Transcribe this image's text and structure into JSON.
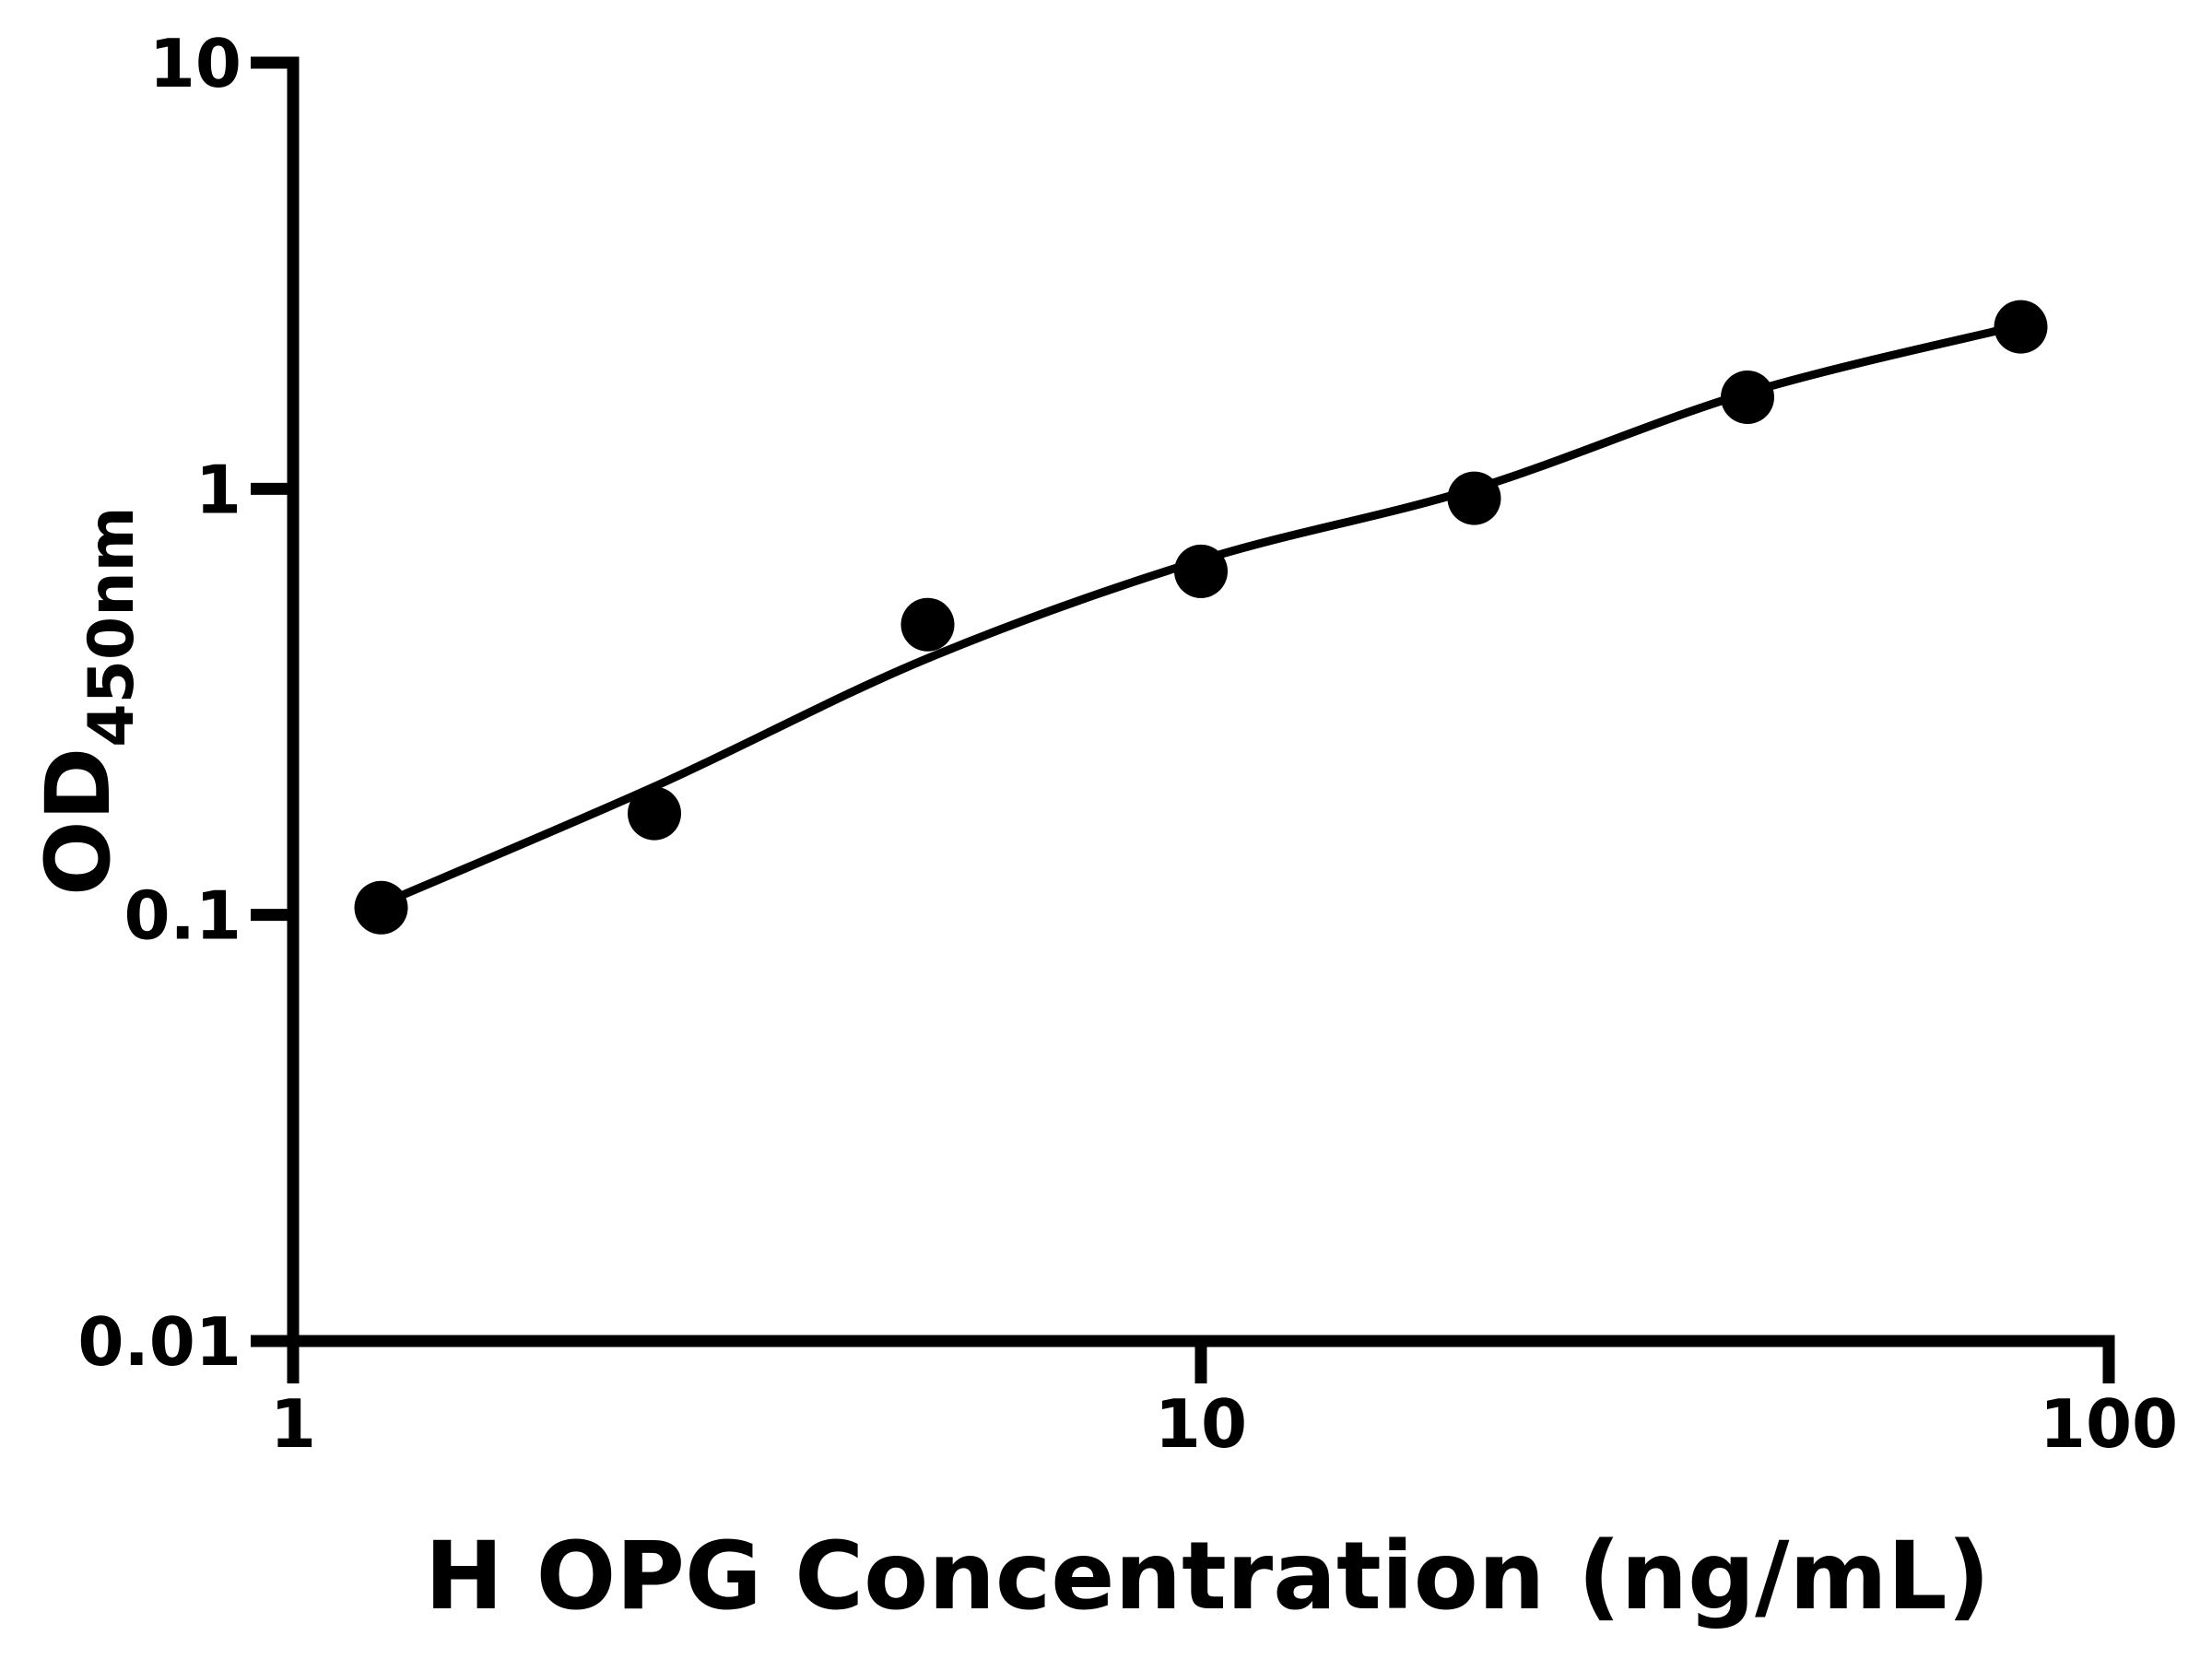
{
  "figure": {
    "background_color": "#ffffff",
    "ink_color": "#000000"
  },
  "chart_data": {
    "type": "scatter",
    "title": "",
    "xlabel": "H OPG Concentration (ng/mL)",
    "ylabel_main": "OD",
    "ylabel_subscript": "450nm",
    "x_scale": "log",
    "y_scale": "log",
    "xlim": [
      1,
      100
    ],
    "ylim": [
      0.01,
      10
    ],
    "grid": false,
    "legend": "none",
    "x_ticks": [
      {
        "value": 1,
        "label": "1"
      },
      {
        "value": 10,
        "label": "10"
      },
      {
        "value": 100,
        "label": "100"
      }
    ],
    "y_ticks": [
      {
        "value": 10,
        "label": "10"
      },
      {
        "value": 1,
        "label": "1"
      },
      {
        "value": 0.1,
        "label": "0.1"
      },
      {
        "value": 0.01,
        "label": "0.01"
      }
    ],
    "series": [
      {
        "name": "H OPG standard data points",
        "kind": "scatter",
        "marker": "filled-circle",
        "color": "#000000",
        "points": [
          {
            "x": 1.25,
            "y": 0.104
          },
          {
            "x": 2.5,
            "y": 0.173
          },
          {
            "x": 5,
            "y": 0.48
          },
          {
            "x": 10,
            "y": 0.64
          },
          {
            "x": 20,
            "y": 0.95
          },
          {
            "x": 40,
            "y": 1.64
          },
          {
            "x": 80,
            "y": 2.4
          }
        ]
      },
      {
        "name": "fitted standard curve",
        "kind": "line",
        "color": "#000000",
        "points": [
          {
            "x": 1.25,
            "y": 0.106
          },
          {
            "x": 2.5,
            "y": 0.2
          },
          {
            "x": 5,
            "y": 0.4
          },
          {
            "x": 10,
            "y": 0.68
          },
          {
            "x": 20,
            "y": 1.0
          },
          {
            "x": 40,
            "y": 1.68
          },
          {
            "x": 80,
            "y": 2.42
          }
        ]
      }
    ]
  }
}
